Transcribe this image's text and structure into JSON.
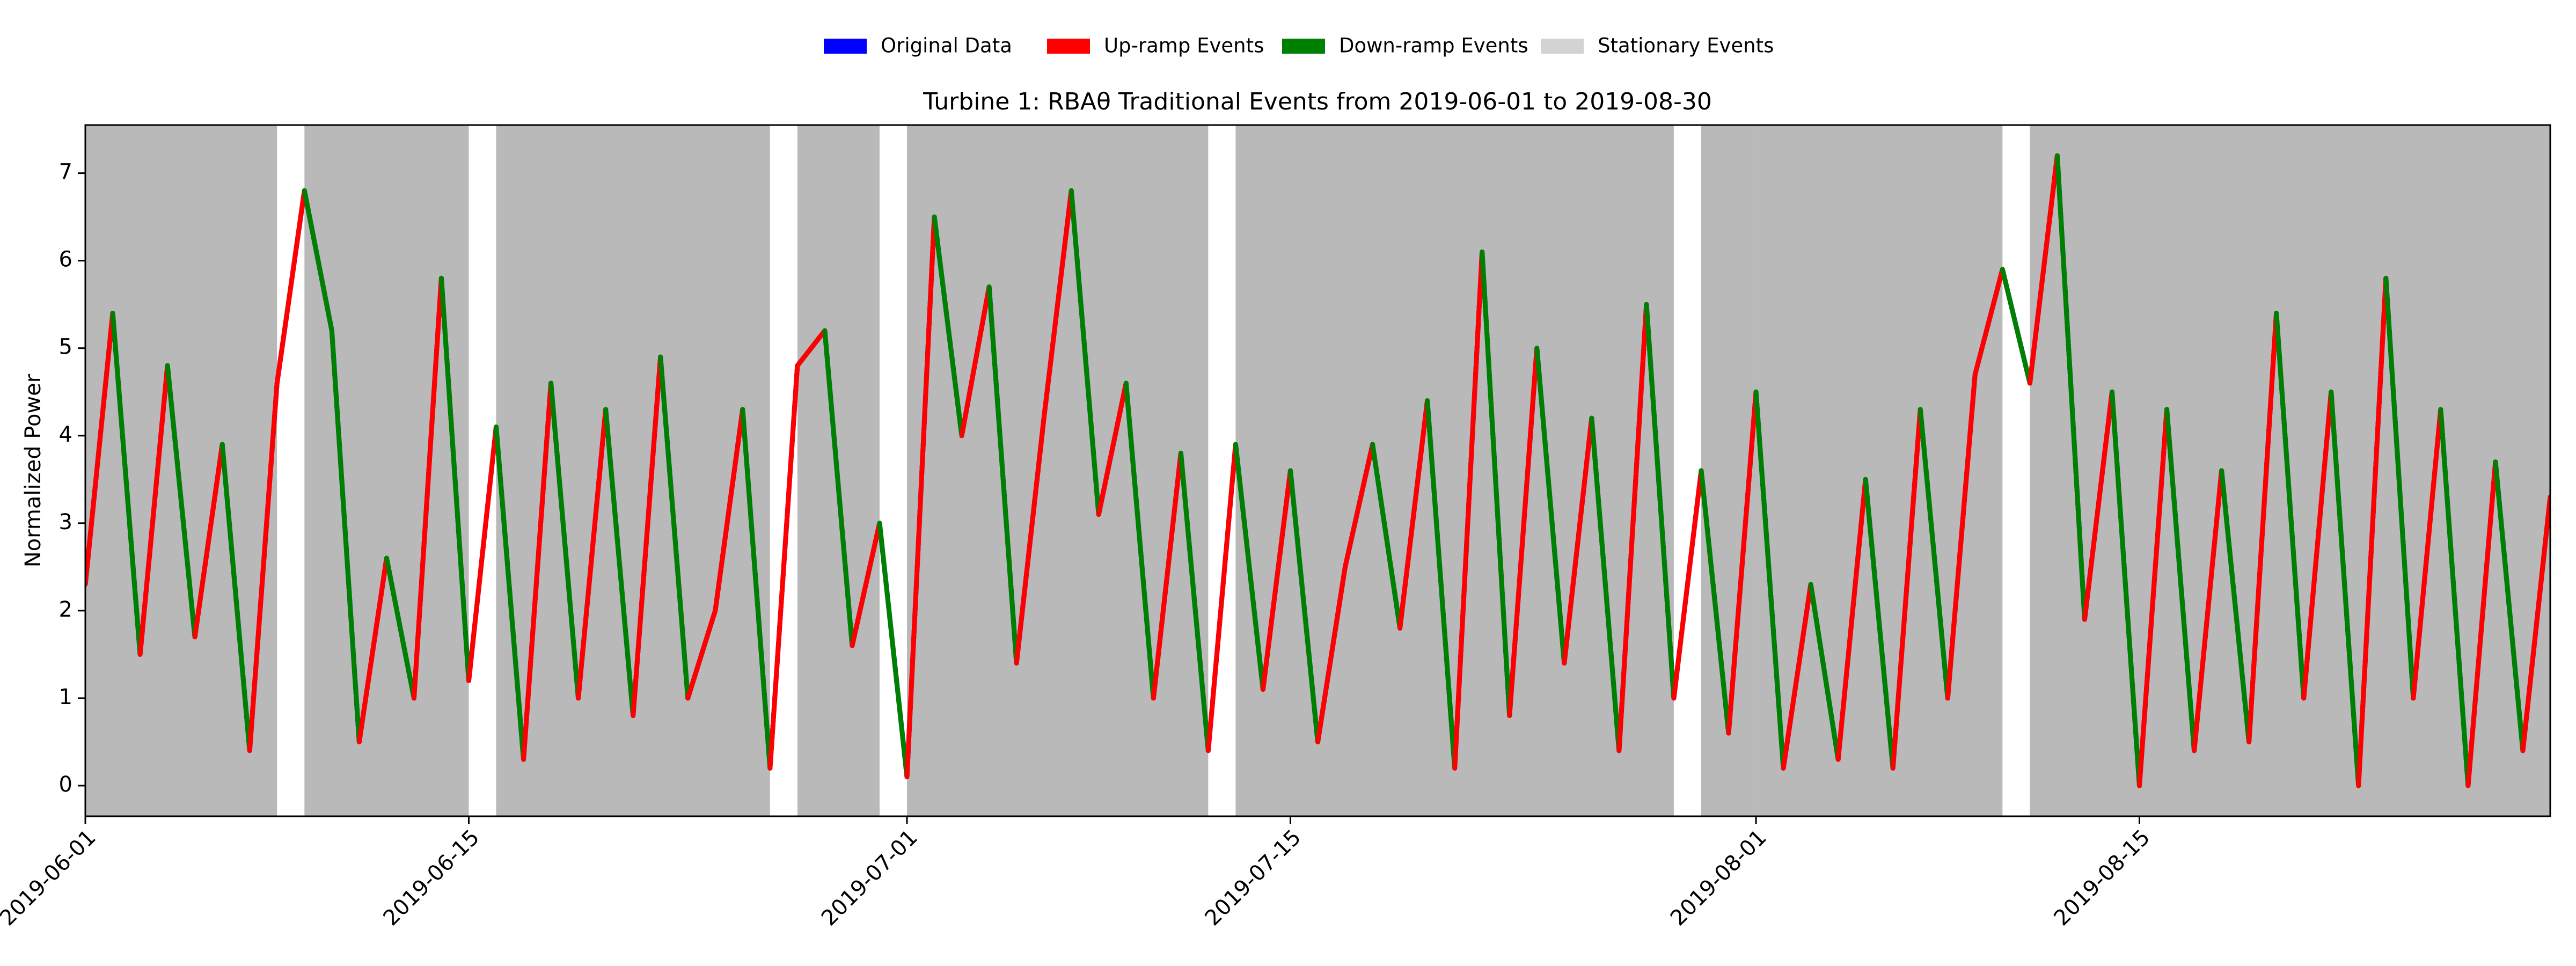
{
  "chart_data": {
    "type": "line",
    "title": "Turbine 1: RBAθ Traditional Events from 2019-06-01 to 2019-08-30",
    "ylabel": "Normalized Power",
    "x": [
      "2019-06-01",
      "2019-06-02",
      "2019-06-03",
      "2019-06-04",
      "2019-06-05",
      "2019-06-06",
      "2019-06-07",
      "2019-06-08",
      "2019-06-09",
      "2019-06-10",
      "2019-06-11",
      "2019-06-12",
      "2019-06-13",
      "2019-06-14",
      "2019-06-15",
      "2019-06-16",
      "2019-06-17",
      "2019-06-18",
      "2019-06-19",
      "2019-06-20",
      "2019-06-21",
      "2019-06-22",
      "2019-06-23",
      "2019-06-24",
      "2019-06-25",
      "2019-06-26",
      "2019-06-27",
      "2019-06-28",
      "2019-06-29",
      "2019-06-30",
      "2019-07-01",
      "2019-07-02",
      "2019-07-03",
      "2019-07-04",
      "2019-07-05",
      "2019-07-06",
      "2019-07-07",
      "2019-07-08",
      "2019-07-09",
      "2019-07-10",
      "2019-07-11",
      "2019-07-12",
      "2019-07-13",
      "2019-07-14",
      "2019-07-15",
      "2019-07-16",
      "2019-07-17",
      "2019-07-18",
      "2019-07-19",
      "2019-07-20",
      "2019-07-21",
      "2019-07-22",
      "2019-07-23",
      "2019-07-24",
      "2019-07-25",
      "2019-07-26",
      "2019-07-27",
      "2019-07-28",
      "2019-07-29",
      "2019-07-30",
      "2019-07-31",
      "2019-08-01",
      "2019-08-02",
      "2019-08-03",
      "2019-08-04",
      "2019-08-05",
      "2019-08-06",
      "2019-08-07",
      "2019-08-08",
      "2019-08-09",
      "2019-08-10",
      "2019-08-11",
      "2019-08-12",
      "2019-08-13",
      "2019-08-14",
      "2019-08-15",
      "2019-08-16",
      "2019-08-17",
      "2019-08-18",
      "2019-08-19",
      "2019-08-20",
      "2019-08-21",
      "2019-08-22",
      "2019-08-23",
      "2019-08-24",
      "2019-08-25",
      "2019-08-26",
      "2019-08-27",
      "2019-08-28",
      "2019-08-29",
      "2019-08-30"
    ],
    "series": [
      {
        "name": "Original Data",
        "color": "#0000ff",
        "values": [
          2.3,
          5.4,
          1.5,
          4.8,
          1.7,
          3.9,
          0.4,
          4.6,
          6.8,
          5.2,
          0.5,
          2.6,
          1.0,
          5.8,
          1.2,
          4.1,
          0.3,
          4.6,
          1.0,
          4.3,
          0.8,
          4.9,
          1.0,
          2.0,
          4.3,
          0.2,
          4.8,
          5.2,
          1.6,
          3.0,
          0.1,
          6.5,
          4.0,
          5.7,
          1.4,
          4.2,
          6.8,
          3.1,
          4.6,
          1.0,
          3.8,
          0.4,
          3.9,
          1.1,
          3.6,
          0.5,
          2.5,
          3.9,
          1.8,
          4.4,
          0.2,
          6.1,
          0.8,
          5.0,
          1.4,
          4.2,
          0.4,
          5.5,
          1.0,
          3.6,
          0.6,
          4.5,
          0.2,
          2.3,
          0.3,
          3.5,
          0.2,
          4.3,
          1.0,
          4.7,
          5.9,
          4.6,
          7.2,
          1.9,
          4.5,
          0.0,
          4.3,
          0.4,
          3.6,
          0.5,
          5.4,
          1.0,
          4.5,
          0.0,
          5.8,
          1.0,
          4.3,
          0.0,
          3.7,
          0.4,
          3.3
        ]
      }
    ],
    "legend": [
      {
        "name": "Original Data",
        "color": "#0000ff"
      },
      {
        "name": "Up-ramp Events",
        "color": "#ff0000"
      },
      {
        "name": "Down-ramp Events",
        "color": "#008000"
      },
      {
        "name": "Stationary Events",
        "color": "#a8a8a8"
      }
    ],
    "stationary_spans": [
      [
        "2019-06-01",
        "2019-06-08"
      ],
      [
        "2019-06-09",
        "2019-06-15"
      ],
      [
        "2019-06-16",
        "2019-06-26"
      ],
      [
        "2019-06-27",
        "2019-06-30"
      ],
      [
        "2019-07-01",
        "2019-07-12"
      ],
      [
        "2019-07-13",
        "2019-07-29"
      ],
      [
        "2019-07-30",
        "2019-08-01"
      ],
      [
        "2019-08-01",
        "2019-08-10"
      ],
      [
        "2019-08-11",
        "2019-08-30"
      ]
    ],
    "xlim": [
      "2019-06-01",
      "2019-08-30"
    ],
    "xticks": [
      "2019-06-01",
      "2019-06-15",
      "2019-07-01",
      "2019-07-15",
      "2019-08-01",
      "2019-08-15"
    ],
    "ylim": [
      -0.35,
      7.55
    ],
    "yticks": [
      0,
      1,
      2,
      3,
      4,
      5,
      6,
      7
    ]
  }
}
